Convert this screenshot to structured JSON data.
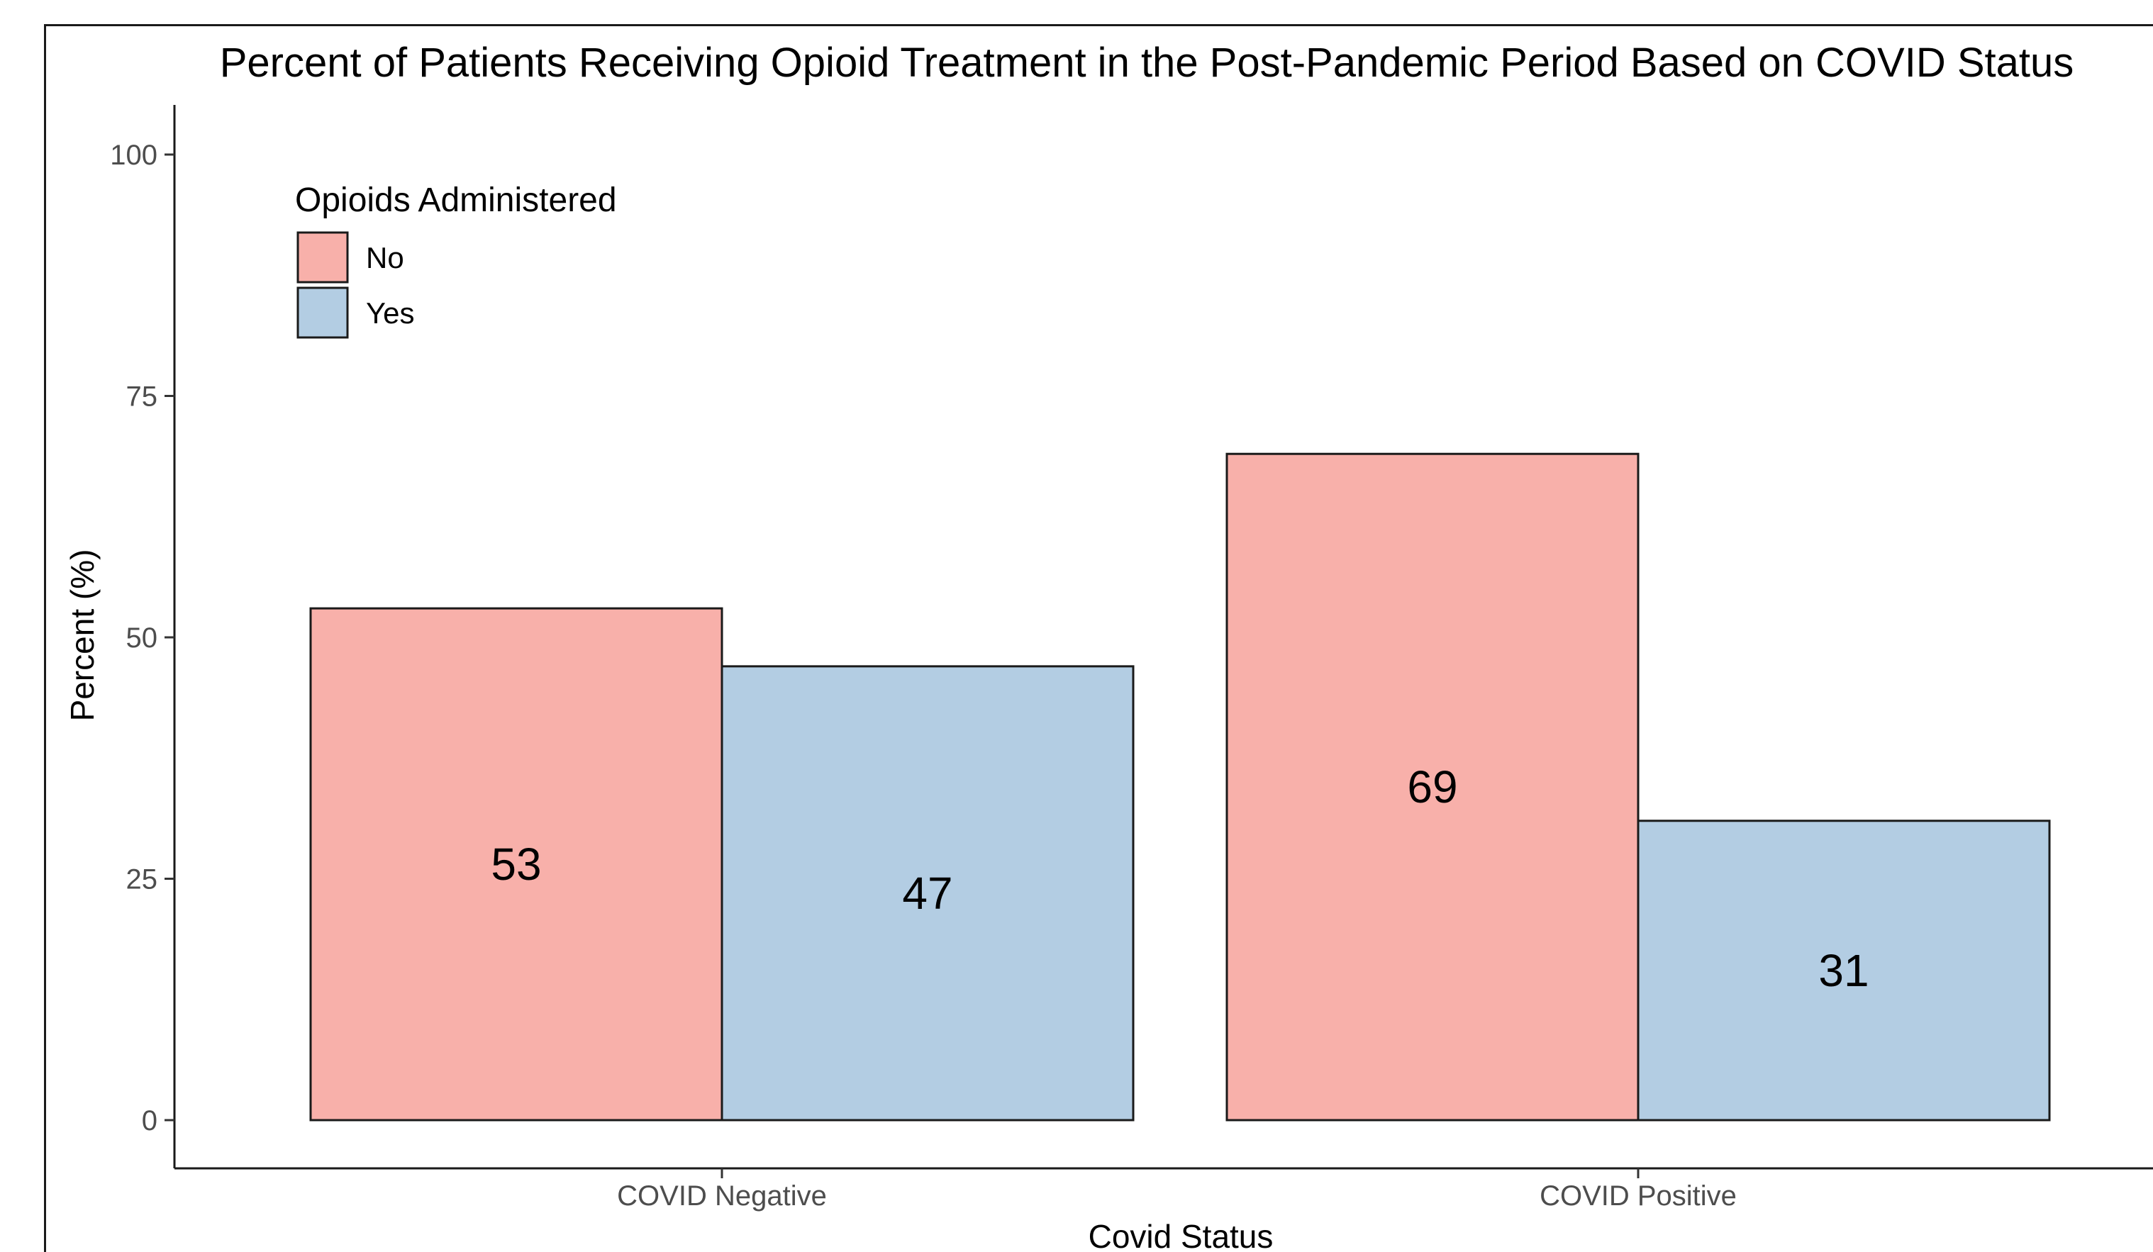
{
  "chart_data": {
    "type": "bar",
    "title": "Percent of Patients Receiving Opioid Treatment in the Post-Pandemic Period Based on COVID Status",
    "xlabel": "Covid Status",
    "ylabel": "Percent (%)",
    "ylim": [
      0,
      100
    ],
    "yticks": [
      "0",
      "25",
      "50",
      "75",
      "100"
    ],
    "categories": [
      "COVID Negative",
      "COVID Positive"
    ],
    "legend": {
      "title": "Opioids Administered",
      "placement": "top-left"
    },
    "series": [
      {
        "name": "No",
        "values": [
          53,
          69
        ],
        "labels": [
          "53",
          "69"
        ],
        "color": "#F8B0AA"
      },
      {
        "name": "Yes",
        "values": [
          47,
          31
        ],
        "labels": [
          "47",
          "31"
        ],
        "color": "#B3CDE3"
      }
    ],
    "grid": false
  }
}
